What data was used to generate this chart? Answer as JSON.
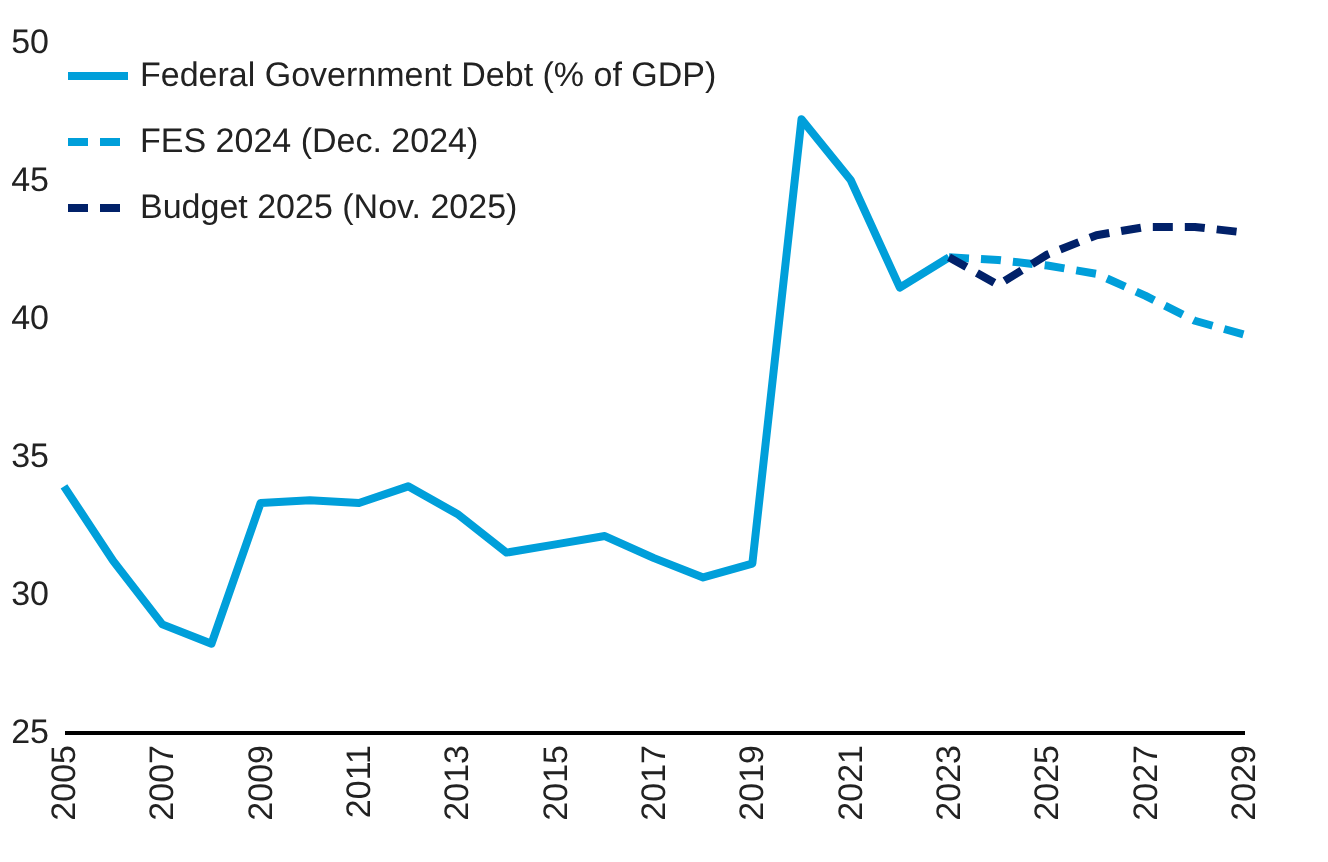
{
  "chart_data": {
    "type": "line",
    "x": [
      2005,
      2006,
      2007,
      2008,
      2009,
      2010,
      2011,
      2012,
      2013,
      2014,
      2015,
      2016,
      2017,
      2018,
      2019,
      2020,
      2021,
      2022,
      2023
    ],
    "series": [
      {
        "name": "Federal Government Debt (% of GDP)",
        "color": "#009fda",
        "line_style": "solid",
        "values": [
          33.9,
          31.2,
          28.9,
          28.2,
          33.3,
          33.4,
          33.3,
          33.9,
          32.9,
          31.5,
          31.8,
          32.1,
          31.3,
          30.6,
          31.1,
          47.2,
          45.0,
          41.1,
          42.2
        ]
      },
      {
        "name": "FES 2024 (Dec. 2024)",
        "color": "#009fda",
        "line_style": "dashed",
        "x": [
          2023,
          2024,
          2025,
          2026,
          2027,
          2028,
          2029
        ],
        "values": [
          42.2,
          42.1,
          41.9,
          41.6,
          40.8,
          39.9,
          39.4
        ]
      },
      {
        "name": "Budget 2025 (Nov. 2025)",
        "color": "#012169",
        "line_style": "dashed",
        "x": [
          2023,
          2024,
          2025,
          2026,
          2027,
          2028,
          2029
        ],
        "values": [
          42.2,
          41.2,
          42.3,
          43.0,
          43.3,
          43.3,
          43.1
        ]
      }
    ],
    "xlim": [
      2005,
      2029
    ],
    "xticks": [
      2005,
      2007,
      2009,
      2011,
      2013,
      2015,
      2017,
      2019,
      2021,
      2023,
      2025,
      2027,
      2029
    ],
    "ylim": [
      25,
      50
    ],
    "yticks": [
      25,
      30,
      35,
      40,
      45,
      50
    ],
    "grid": false,
    "legend": "top left",
    "marker": "none"
  }
}
